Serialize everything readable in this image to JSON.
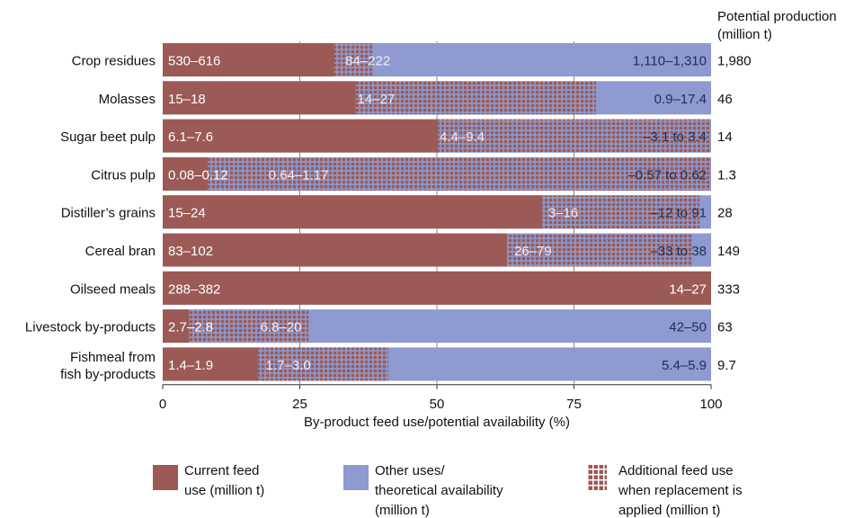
{
  "chart_data": {
    "type": "bar",
    "orientation": "horizontal",
    "stacked": true,
    "xlabel": "By-product feed use/potential availability (%)",
    "xlim": [
      0,
      100
    ],
    "xticks": [
      "0",
      "25",
      "50",
      "75",
      "100"
    ],
    "right_header": [
      "Potential production",
      "(million t)"
    ],
    "colors": {
      "current": "#9b5a55",
      "other": "#8e9ad0",
      "hatch_fg": "#9b5a55",
      "hatch_bg": "#8e9ad0",
      "dark_label": "#1e2f55"
    },
    "legend": [
      {
        "key": "current",
        "label": [
          "Current feed",
          "use (million t)"
        ]
      },
      {
        "key": "other",
        "label": [
          "Other uses/",
          "theoretical availability",
          "(million t)"
        ]
      },
      {
        "key": "additional",
        "label": [
          "Additional feed use",
          "when replacement is",
          "applied (million t)"
        ]
      }
    ],
    "rows": [
      {
        "category": [
          "Crop residues"
        ],
        "current_pct": 31.3,
        "additional_pct": 7.1,
        "current_label": "530–616",
        "additional_label": "84–222",
        "other_label": "1,110–1,310",
        "potential": "1,980"
      },
      {
        "category": [
          "Molasses"
        ],
        "current_pct": 35.2,
        "additional_pct": 43.8,
        "current_label": "15–18",
        "additional_label": "14–27",
        "other_label": "0.9–17.4",
        "potential": "46"
      },
      {
        "category": [
          "Sugar beet pulp"
        ],
        "current_pct": 50.2,
        "additional_pct": 49.6,
        "current_label": "6.1–7.6",
        "additional_label": "4.4–9.4",
        "other_label": "–3.1 to 3.4",
        "potential": "14"
      },
      {
        "category": [
          "Citrus pulp"
        ],
        "current_pct": 8.2,
        "additional_pct": 91.8,
        "current_label": "0.08–0.12",
        "additional_label": "0.64–1.17",
        "other_label": "–0.57 to 0.62",
        "potential": "1.3"
      },
      {
        "category": [
          "Distiller’s grains"
        ],
        "current_pct": 69.2,
        "additional_pct": 28.7,
        "current_label": "15–24",
        "additional_label": "3–16",
        "other_label": "–12 to 91",
        "potential": "28"
      },
      {
        "category": [
          "Cereal bran"
        ],
        "current_pct": 62.8,
        "additional_pct": 33.8,
        "current_label": "83–102",
        "additional_label": "26–79",
        "other_label": "–33 to 38",
        "potential": "149"
      },
      {
        "category": [
          "Oilseed meals"
        ],
        "current_pct": 100,
        "additional_pct": 0,
        "current_label": "288–382",
        "additional_label": "",
        "other_label": "14–27",
        "potential": "333"
      },
      {
        "category": [
          "Livestock by-products"
        ],
        "current_pct": 4.8,
        "additional_pct": 21.8,
        "current_label": "2.7–2.8",
        "additional_label": "6.8–20",
        "other_label": "42–50",
        "potential": "63"
      },
      {
        "category": [
          "Fishmeal from",
          "fish by-products"
        ],
        "current_pct": 17.4,
        "additional_pct": 23.7,
        "current_label": "1.4–1.9",
        "additional_label": "1.7–3.0",
        "other_label": "5.4–5.9",
        "potential": "9.7"
      }
    ]
  }
}
